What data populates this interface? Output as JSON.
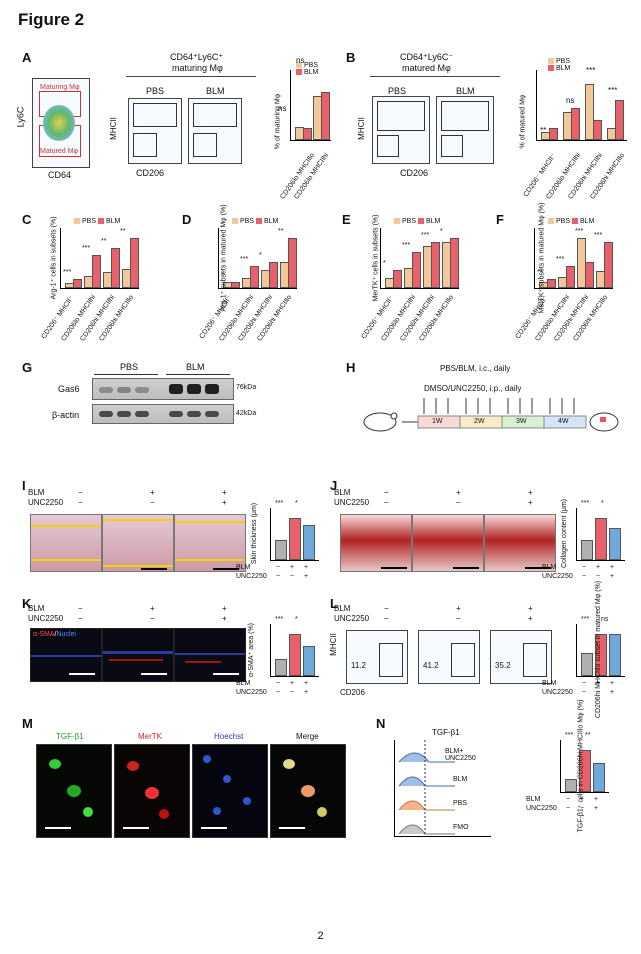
{
  "figure_title": "Figure 2",
  "page_number": "2",
  "colors": {
    "pbs": "#f2c79a",
    "blm": "#e8606a",
    "unc": "#6fa8dc",
    "pbs_ctrl": "#b0b0b0"
  },
  "panels": {
    "A": {
      "label": "A",
      "gate_labels": [
        "Maturing Mφ",
        "Matured Mφ"
      ],
      "y_axis": "Ly6C",
      "x_axis": "CD64",
      "header": "CD64⁺Ly6C⁺",
      "header2": "maturing Mφ",
      "plot_labels": [
        "PBS",
        "BLM"
      ],
      "flow_x": "CD206",
      "flow_y": "MHCII",
      "chart_ylabel": "% of maturing Mφ",
      "chart_cats": [
        "CD206lo MHCIIlo",
        "CD206lo MHCIIhi"
      ],
      "sig": [
        "ns",
        "ns"
      ],
      "legend": [
        "PBS",
        "BLM"
      ]
    },
    "B": {
      "label": "B",
      "header": "CD64⁺Ly6C⁻",
      "header2": "matured Mφ",
      "plot_labels": [
        "PBS",
        "BLM"
      ],
      "flow_x": "CD206",
      "flow_y": "MHCII",
      "chart_ylabel": "% of matured Mφ",
      "chart_cats": [
        "CD206⁻ MHCII⁻",
        "CD206lo MHCIIhi",
        "CD206hi MHCIIhi",
        "CD206hi MHCIIlo"
      ],
      "sig": [
        "**",
        "ns",
        "***",
        "***"
      ],
      "legend": [
        "PBS",
        "BLM"
      ]
    },
    "C": {
      "label": "C",
      "ylabel": "Arg-1⁺ cells in subsets (%)",
      "sig": [
        "***",
        "***",
        "**",
        "**"
      ],
      "legend": [
        "PBS",
        "BLM"
      ]
    },
    "D": {
      "label": "D",
      "ylabel": "Arg-1⁺ subsets in matured Mφ (%)",
      "sig": [
        "*",
        "***",
        "*",
        "**"
      ],
      "legend": [
        "PBS",
        "BLM"
      ]
    },
    "E": {
      "label": "E",
      "ylabel": "MerTK⁺ cells in subsets (%)",
      "sig": [
        "*",
        "***",
        "***",
        "*"
      ],
      "legend": [
        "PBS",
        "BLM"
      ]
    },
    "F": {
      "label": "F",
      "ylabel": "MerTK⁺ subsets in matured Mφ (%)",
      "sig": [
        "**",
        "***",
        "***",
        "***"
      ],
      "legend": [
        "PBS",
        "BLM"
      ]
    },
    "G": {
      "label": "G",
      "groups": [
        "PBS",
        "BLM"
      ],
      "rows": [
        {
          "name": "Gas6",
          "size": "76kDa"
        },
        {
          "name": "β-actin",
          "size": "42kDa"
        }
      ]
    },
    "H": {
      "label": "H",
      "line1": "PBS/BLM, i.c., daily",
      "line2": "DMSO/UNC2250, i.p., daily",
      "weeks": [
        "1W",
        "2W",
        "3W",
        "4W"
      ]
    },
    "I": {
      "label": "I",
      "ylabel": "Skin thickness (μm)",
      "sig": [
        "***",
        "*"
      ]
    },
    "J": {
      "label": "J",
      "ylabel": "Collagen content (μm)",
      "sig": [
        "***",
        "*"
      ]
    },
    "K": {
      "label": "K",
      "stain": "α-SMA",
      "stain2": "Nuclei",
      "ylabel": "α-SMA⁺ area (%)",
      "sig": [
        "***",
        "*"
      ]
    },
    "L": {
      "label": "L",
      "flow_y": "MHCII",
      "flow_x": "CD206",
      "gate_values": [
        "11.2",
        "41.2",
        "35.2"
      ],
      "ylabel": "CD206hi MHCIIlo subset in matured Mφ (%)",
      "sig": [
        "***",
        "ns"
      ]
    },
    "M": {
      "label": "M",
      "channels": [
        "TGF-β1",
        "MerTK",
        "Hoechst",
        "Merge"
      ]
    },
    "N": {
      "label": "N",
      "title": "TGF-β1",
      "traces": [
        "BLM+ UNC2250",
        "BLM",
        "PBS",
        "FMO"
      ],
      "ylabel": "TGF-β1⁺ cells in CD206hi MHCIIlo Mφ (%)",
      "sig": [
        "***",
        "**"
      ]
    }
  },
  "treatment_table": {
    "row_labels": [
      "BLM",
      "UNC2250"
    ],
    "cols": [
      [
        "−",
        "−"
      ],
      [
        "+",
        "−"
      ],
      [
        "+",
        "+"
      ]
    ]
  }
}
